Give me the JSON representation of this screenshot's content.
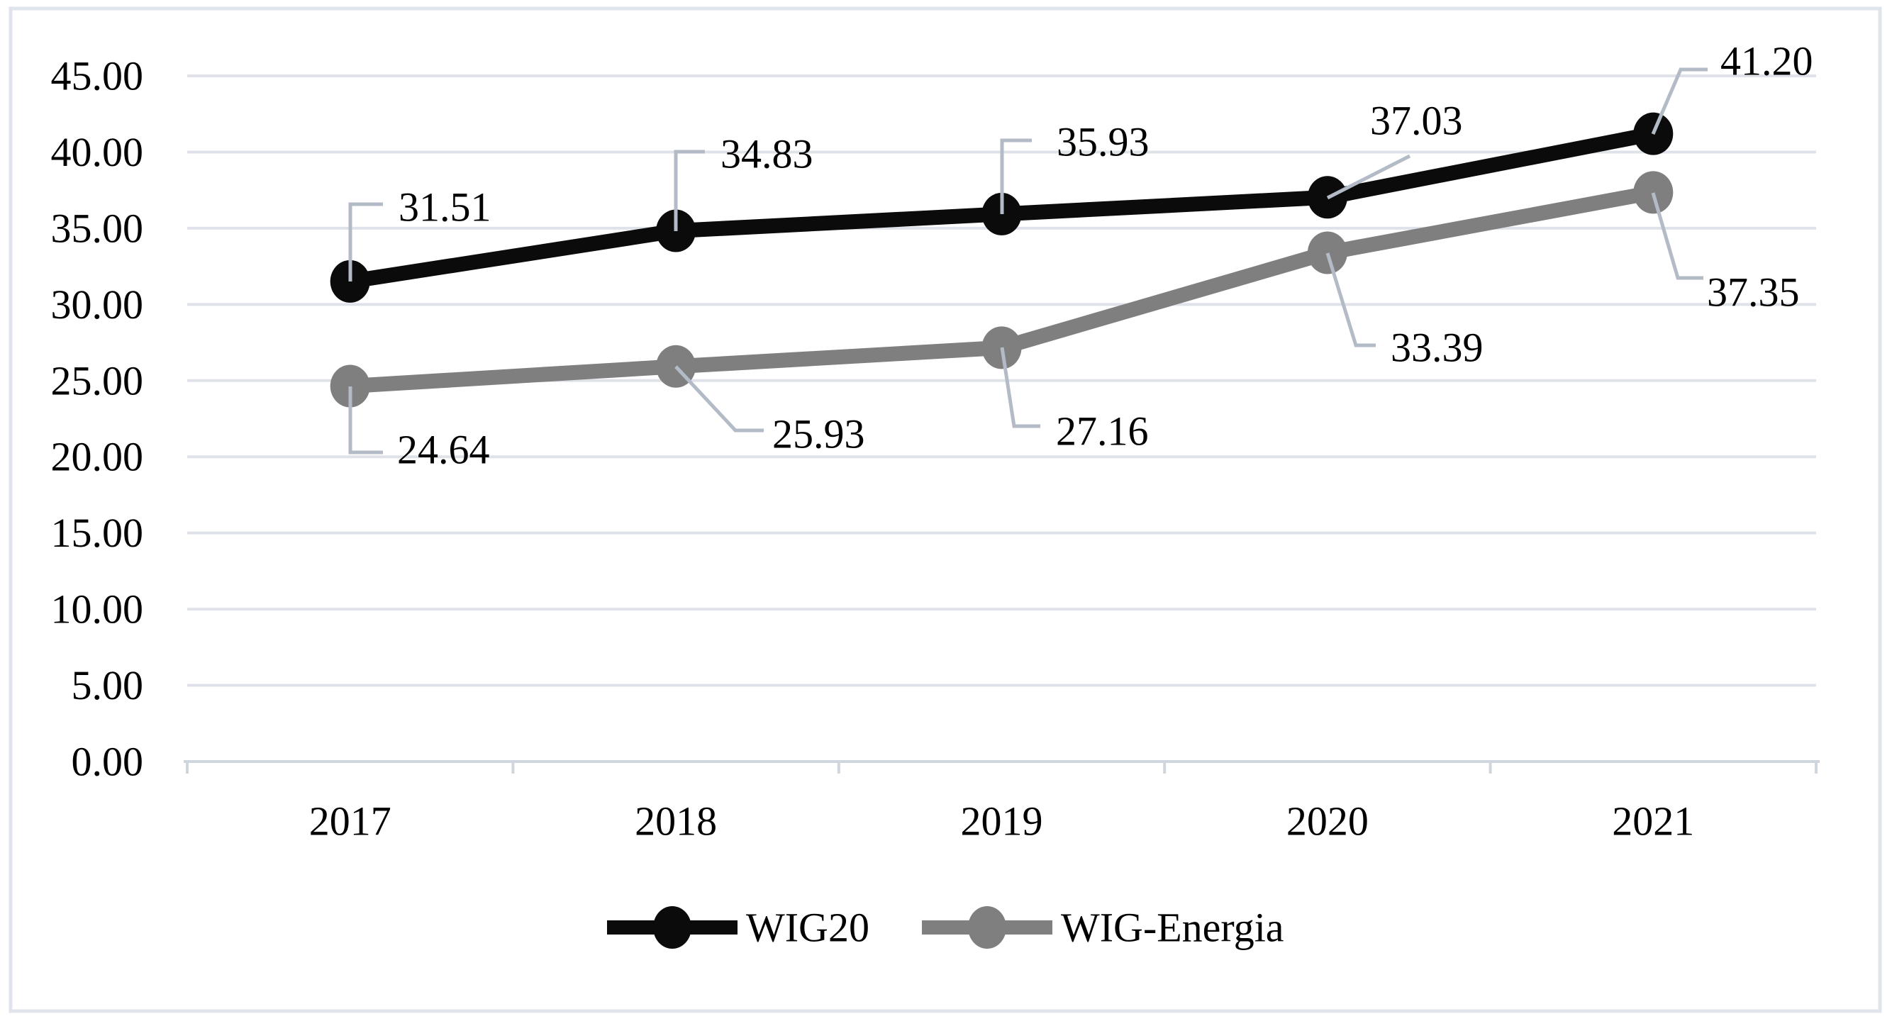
{
  "chart_data": {
    "type": "line",
    "title": "",
    "xlabel": "",
    "ylabel": "",
    "categories": [
      "2017",
      "2018",
      "2019",
      "2020",
      "2021"
    ],
    "series": [
      {
        "name": "WIG20",
        "color": "#0b0b0b",
        "values": [
          31.51,
          34.83,
          35.93,
          37.03,
          41.2
        ],
        "data_labels": [
          "31.51",
          "34.83",
          "35.93",
          "37.03",
          "41.20"
        ]
      },
      {
        "name": "WIG-Energia",
        "color": "#7f7f7f",
        "values": [
          24.64,
          25.93,
          27.16,
          33.39,
          37.35
        ],
        "data_labels": [
          "24.64",
          "25.93",
          "27.16",
          "33.39",
          "37.35"
        ]
      }
    ],
    "ylim": [
      0,
      45
    ],
    "y_tick_step": 5,
    "y_tick_labels": [
      "0.00",
      "5.00",
      "10.00",
      "15.00",
      "20.00",
      "25.00",
      "30.00",
      "35.00",
      "40.00",
      "45.00"
    ],
    "grid": true,
    "legend_position": "bottom"
  },
  "colors": {
    "background": "#ffffff",
    "gridline": "#dfe3e9",
    "axis_line": "#d0d6de",
    "leader_line": "#b3bbc7",
    "frame_border": "#e0e4ec",
    "text": "#000000",
    "series_wig20": "#0b0b0b",
    "series_wig_energia": "#7f7f7f"
  }
}
